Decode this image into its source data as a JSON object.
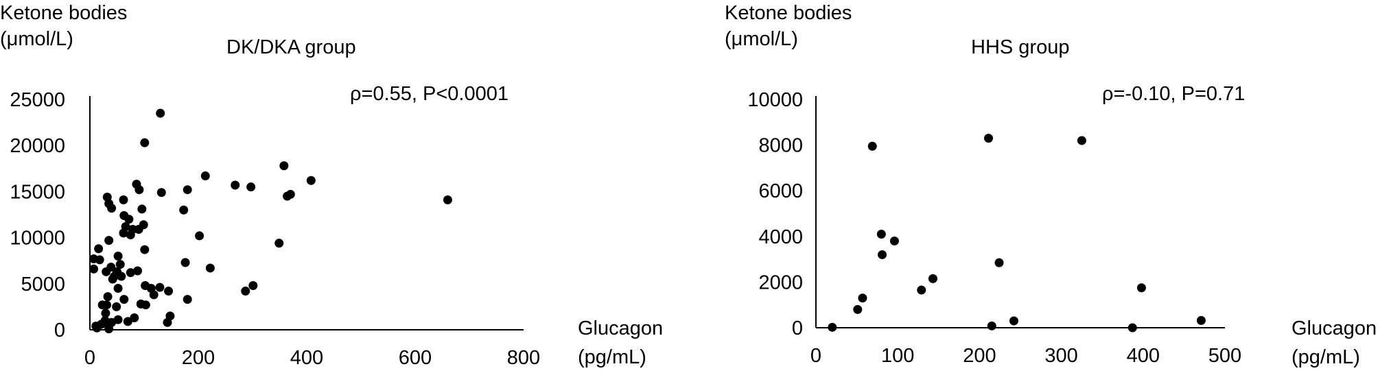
{
  "chart_data": [
    {
      "type": "scatter",
      "title": "DK/DKA group",
      "annotation": "ρ=0.55, P<0.0001",
      "ylabel_line1": "Ketone bodies",
      "ylabel_line2": "(μmol/L)",
      "xlabel_line1": "Glucagon",
      "xlabel_line2": "(pg/mL)",
      "xlim": [
        0,
        800
      ],
      "ylim": [
        0,
        25000
      ],
      "xticks": [
        "0",
        "200",
        "400",
        "600",
        "800"
      ],
      "yticks": [
        "0",
        "5000",
        "10000",
        "15000",
        "20000",
        "25000"
      ],
      "points": [
        [
          130,
          23500
        ],
        [
          101,
          20300
        ],
        [
          358,
          17800
        ],
        [
          213,
          16700
        ],
        [
          408,
          16200
        ],
        [
          268,
          15700
        ],
        [
          297,
          15500
        ],
        [
          86,
          15800
        ],
        [
          91,
          15200
        ],
        [
          180,
          15200
        ],
        [
          132,
          14900
        ],
        [
          364,
          14500
        ],
        [
          370,
          14700
        ],
        [
          660,
          14100
        ],
        [
          32,
          14400
        ],
        [
          62,
          14100
        ],
        [
          35,
          13700
        ],
        [
          40,
          13200
        ],
        [
          96,
          13100
        ],
        [
          173,
          13000
        ],
        [
          63,
          12400
        ],
        [
          72,
          12000
        ],
        [
          99,
          11400
        ],
        [
          66,
          11200
        ],
        [
          79,
          10900
        ],
        [
          90,
          10900
        ],
        [
          75,
          10300
        ],
        [
          62,
          10500
        ],
        [
          202,
          10200
        ],
        [
          35,
          9700
        ],
        [
          16,
          8800
        ],
        [
          349,
          9400
        ],
        [
          101,
          8700
        ],
        [
          52,
          8000
        ],
        [
          7,
          7700
        ],
        [
          18,
          7600
        ],
        [
          176,
          7300
        ],
        [
          56,
          7100
        ],
        [
          39,
          6800
        ],
        [
          7,
          6600
        ],
        [
          222,
          6700
        ],
        [
          30,
          6300
        ],
        [
          50,
          6300
        ],
        [
          75,
          6200
        ],
        [
          88,
          6400
        ],
        [
          58,
          5800
        ],
        [
          42,
          5500
        ],
        [
          45,
          5800
        ],
        [
          102,
          4800
        ],
        [
          113,
          4500
        ],
        [
          129,
          4600
        ],
        [
          145,
          4200
        ],
        [
          118,
          3800
        ],
        [
          52,
          4500
        ],
        [
          33,
          3600
        ],
        [
          301,
          4800
        ],
        [
          287,
          4200
        ],
        [
          180,
          3300
        ],
        [
          63,
          3300
        ],
        [
          23,
          2700
        ],
        [
          31,
          2700
        ],
        [
          49,
          2500
        ],
        [
          94,
          2800
        ],
        [
          103,
          2700
        ],
        [
          148,
          1500
        ],
        [
          29,
          1800
        ],
        [
          28,
          1000
        ],
        [
          33,
          600
        ],
        [
          40,
          800
        ],
        [
          52,
          1100
        ],
        [
          70,
          900
        ],
        [
          82,
          1300
        ],
        [
          143,
          800
        ],
        [
          11,
          400
        ],
        [
          21,
          600
        ],
        [
          35,
          100
        ],
        [
          13,
          200
        ]
      ]
    },
    {
      "type": "scatter",
      "title": "HHS group",
      "annotation": "ρ=-0.10, P=0.71",
      "ylabel_line1": "Ketone bodies",
      "ylabel_line2": "(μmol/L)",
      "xlabel_line1": "Glucagon",
      "xlabel_line2": "(pg/mL)",
      "xlim": [
        0,
        500
      ],
      "ylim": [
        0,
        10000
      ],
      "xticks": [
        "0",
        "100",
        "200",
        "300",
        "400",
        "500"
      ],
      "yticks": [
        "0",
        "2000",
        "4000",
        "6000",
        "8000",
        "10000"
      ],
      "points": [
        [
          69,
          7950
        ],
        [
          211,
          8300
        ],
        [
          325,
          8200
        ],
        [
          80,
          4100
        ],
        [
          96,
          3800
        ],
        [
          81,
          3200
        ],
        [
          224,
          2850
        ],
        [
          143,
          2150
        ],
        [
          129,
          1650
        ],
        [
          398,
          1750
        ],
        [
          57,
          1300
        ],
        [
          51,
          800
        ],
        [
          242,
          300
        ],
        [
          471,
          320
        ],
        [
          215,
          80
        ],
        [
          387,
          0
        ],
        [
          20,
          20
        ]
      ]
    }
  ]
}
